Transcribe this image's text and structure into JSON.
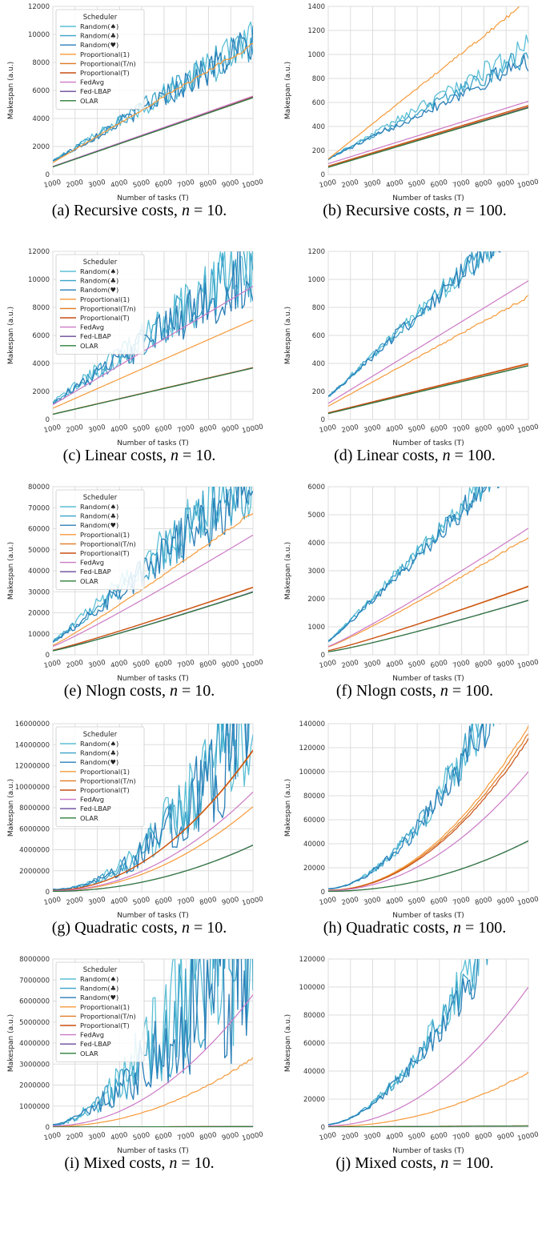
{
  "xlabel": "Number of tasks (T)",
  "ylabel": "Makespan (a.u.)",
  "legend_title": "Scheduler",
  "xticks": [
    "1000",
    "2000",
    "3000",
    "4000",
    "5000",
    "6000",
    "7000",
    "8000",
    "9000",
    "10000"
  ],
  "series_styles": [
    {
      "name": "Random(♠)",
      "color": "#5cbfd6"
    },
    {
      "name": "Random(♣)",
      "color": "#3aa3c9"
    },
    {
      "name": "Random(♥)",
      "color": "#2a7fb8"
    },
    {
      "name": "Proportional(1)",
      "color": "#f59a3a"
    },
    {
      "name": "Proportional(T/n)",
      "color": "#e07b22"
    },
    {
      "name": "Proportional(T)",
      "color": "#c84f12"
    },
    {
      "name": "FedAvg",
      "color": "#cc79c6"
    },
    {
      "name": "Fed-LBAP",
      "color": "#6a4c9c"
    },
    {
      "name": "OLAR",
      "color": "#2e7d3a"
    }
  ],
  "chart_data": [
    {
      "id": "a",
      "type": "line",
      "caption_prefix": "(a) Recursive costs, ",
      "n": "10",
      "xlim": [
        1000,
        10000
      ],
      "ylim": [
        0,
        12000
      ],
      "yticks": [
        "0",
        "2000",
        "4000",
        "6000",
        "8000",
        "10000",
        "12000"
      ],
      "legend": true,
      "series": [
        {
          "start": 950,
          "end": 9500,
          "noise": 0.09,
          "exp": 1
        },
        {
          "start": 950,
          "end": 9600,
          "noise": 0.09,
          "exp": 1
        },
        {
          "start": 950,
          "end": 9300,
          "noise": 0.09,
          "exp": 1
        },
        {
          "start": 850,
          "end": 9300,
          "noise": 0.01,
          "exp": 1
        },
        {
          "start": 560,
          "end": 5550,
          "noise": 0,
          "exp": 1
        },
        {
          "start": 560,
          "end": 5550,
          "noise": 0,
          "exp": 1
        },
        {
          "start": 580,
          "end": 5600,
          "noise": 0,
          "exp": 1
        },
        {
          "start": 550,
          "end": 5500,
          "noise": 0,
          "exp": 1
        },
        {
          "start": 540,
          "end": 5480,
          "noise": 0,
          "exp": 1
        }
      ]
    },
    {
      "id": "b",
      "type": "line",
      "caption_prefix": "(b) Recursive costs, ",
      "n": "100",
      "xlim": [
        1000,
        10000
      ],
      "ylim": [
        0,
        1400
      ],
      "yticks": [
        "0",
        "200",
        "400",
        "600",
        "800",
        "1000",
        "1200",
        "1400"
      ],
      "legend": false,
      "series": [
        {
          "start": 130,
          "end": 1070,
          "noise": 0.05,
          "exp": 1
        },
        {
          "start": 130,
          "end": 1000,
          "noise": 0.05,
          "exp": 1
        },
        {
          "start": 130,
          "end": 950,
          "noise": 0.05,
          "exp": 1
        },
        {
          "start": 130,
          "end": 1450,
          "noise": 0.006,
          "exp": 1
        },
        {
          "start": 65,
          "end": 565,
          "noise": 0,
          "exp": 1
        },
        {
          "start": 70,
          "end": 575,
          "noise": 0,
          "exp": 1
        },
        {
          "start": 90,
          "end": 610,
          "noise": 0,
          "exp": 1
        },
        {
          "start": 60,
          "end": 560,
          "noise": 0,
          "exp": 1
        },
        {
          "start": 60,
          "end": 555,
          "noise": 0,
          "exp": 1
        }
      ]
    },
    {
      "id": "c",
      "type": "line",
      "caption_prefix": "(c) Linear costs, ",
      "n": "10",
      "xlim": [
        1000,
        10000
      ],
      "ylim": [
        0,
        12000
      ],
      "yticks": [
        "0",
        "2000",
        "4000",
        "6000",
        "8000",
        "10000",
        "12000"
      ],
      "legend": true,
      "series": [
        {
          "start": 1200,
          "end": 11500,
          "noise": 0.14,
          "exp": 1
        },
        {
          "start": 1200,
          "end": 11000,
          "noise": 0.14,
          "exp": 1
        },
        {
          "start": 1200,
          "end": 10500,
          "noise": 0.14,
          "exp": 1
        },
        {
          "start": 800,
          "end": 7100,
          "noise": 0,
          "exp": 1
        },
        {
          "start": 380,
          "end": 3700,
          "noise": 0,
          "exp": 1
        },
        {
          "start": 380,
          "end": 3700,
          "noise": 0,
          "exp": 1
        },
        {
          "start": 1050,
          "end": 9500,
          "noise": 0,
          "exp": 1
        },
        {
          "start": 370,
          "end": 3680,
          "noise": 0,
          "exp": 1
        },
        {
          "start": 370,
          "end": 3670,
          "noise": 0,
          "exp": 1
        }
      ]
    },
    {
      "id": "d",
      "type": "line",
      "caption_prefix": "(d) Linear costs, ",
      "n": "100",
      "xlim": [
        1000,
        10000
      ],
      "ylim": [
        0,
        1200
      ],
      "yticks": [
        "0",
        "200",
        "400",
        "600",
        "800",
        "1000",
        "1200"
      ],
      "legend": false,
      "series": [
        {
          "start": 160,
          "end": 1500,
          "noise": 0.05,
          "exp": 1
        },
        {
          "start": 160,
          "end": 1480,
          "noise": 0.05,
          "exp": 1
        },
        {
          "start": 160,
          "end": 1470,
          "noise": 0.05,
          "exp": 1
        },
        {
          "start": 95,
          "end": 875,
          "noise": 0.006,
          "exp": 1
        },
        {
          "start": 45,
          "end": 395,
          "noise": 0,
          "exp": 1
        },
        {
          "start": 48,
          "end": 400,
          "noise": 0,
          "exp": 1
        },
        {
          "start": 115,
          "end": 990,
          "noise": 0,
          "exp": 1
        },
        {
          "start": 42,
          "end": 385,
          "noise": 0,
          "exp": 1
        },
        {
          "start": 42,
          "end": 383,
          "noise": 0,
          "exp": 1
        }
      ]
    },
    {
      "id": "e",
      "type": "line",
      "caption_prefix": "(e) Nlogn costs, ",
      "n": "10",
      "xlim": [
        1000,
        10000
      ],
      "ylim": [
        0,
        80000
      ],
      "yticks": [
        "0",
        "10000",
        "20000",
        "30000",
        "40000",
        "50000",
        "60000",
        "70000",
        "80000"
      ],
      "legend": true,
      "series": [
        {
          "start": 6500,
          "end": 90000,
          "noise": 0.13,
          "exp": 1.05
        },
        {
          "start": 6500,
          "end": 85000,
          "noise": 0.13,
          "exp": 1.05
        },
        {
          "start": 6500,
          "end": 82000,
          "noise": 0.13,
          "exp": 1.05
        },
        {
          "start": 4500,
          "end": 68000,
          "noise": 0.006,
          "exp": 1.08
        },
        {
          "start": 2200,
          "end": 32000,
          "noise": 0,
          "exp": 1.08
        },
        {
          "start": 2200,
          "end": 32200,
          "noise": 0,
          "exp": 1.08
        },
        {
          "start": 4000,
          "end": 57000,
          "noise": 0,
          "exp": 1.08
        },
        {
          "start": 2000,
          "end": 30000,
          "noise": 0,
          "exp": 1.1
        },
        {
          "start": 1900,
          "end": 29800,
          "noise": 0,
          "exp": 1.1
        }
      ]
    },
    {
      "id": "f",
      "type": "line",
      "caption_prefix": "(f) Nlogn costs, ",
      "n": "100",
      "xlim": [
        1000,
        10000
      ],
      "ylim": [
        0,
        6000
      ],
      "yticks": [
        "0",
        "1000",
        "2000",
        "3000",
        "4000",
        "5000",
        "6000"
      ],
      "legend": false,
      "series": [
        {
          "start": 500,
          "end": 8000,
          "noise": 0.05,
          "exp": 1.05
        },
        {
          "start": 480,
          "end": 7800,
          "noise": 0.05,
          "exp": 1.05
        },
        {
          "start": 470,
          "end": 7600,
          "noise": 0.05,
          "exp": 1.05
        },
        {
          "start": 280,
          "end": 4200,
          "noise": 0.005,
          "exp": 1.1
        },
        {
          "start": 150,
          "end": 2430,
          "noise": 0,
          "exp": 1.1
        },
        {
          "start": 150,
          "end": 2450,
          "noise": 0,
          "exp": 1.1
        },
        {
          "start": 300,
          "end": 4520,
          "noise": 0,
          "exp": 1.1
        },
        {
          "start": 110,
          "end": 1950,
          "noise": 0,
          "exp": 1.15
        },
        {
          "start": 110,
          "end": 1940,
          "noise": 0,
          "exp": 1.15
        }
      ]
    },
    {
      "id": "g",
      "type": "line",
      "caption_prefix": "(g) Quadratic costs, ",
      "n": "10",
      "xlim": [
        1000,
        10000
      ],
      "ylim": [
        0,
        16000000
      ],
      "yticks": [
        "0",
        "2000000",
        "4000000",
        "6000000",
        "8000000",
        "10000000",
        "12000000",
        "14000000",
        "16000000"
      ],
      "legend": true,
      "series": [
        {
          "start": 200000,
          "end": 20000000,
          "noise": 0.25,
          "exp": 2
        },
        {
          "start": 200000,
          "end": 19000000,
          "noise": 0.25,
          "exp": 2
        },
        {
          "start": 200000,
          "end": 18000000,
          "noise": 0.25,
          "exp": 2
        },
        {
          "start": 80000,
          "end": 8100000,
          "noise": 0,
          "exp": 2
        },
        {
          "start": 135000,
          "end": 13400000,
          "noise": 0,
          "exp": 2
        },
        {
          "start": 135000,
          "end": 13500000,
          "noise": 0,
          "exp": 2
        },
        {
          "start": 95000,
          "end": 9500000,
          "noise": 0,
          "exp": 2
        },
        {
          "start": 45000,
          "end": 4450000,
          "noise": 0,
          "exp": 2
        },
        {
          "start": 45000,
          "end": 4430000,
          "noise": 0,
          "exp": 2
        }
      ]
    },
    {
      "id": "h",
      "type": "line",
      "caption_prefix": "(h) Quadratic costs, ",
      "n": "100",
      "xlim": [
        1000,
        10000
      ],
      "ylim": [
        0,
        140000
      ],
      "yticks": [
        "0",
        "20000",
        "40000",
        "60000",
        "80000",
        "100000",
        "120000",
        "140000"
      ],
      "legend": false,
      "series": [
        {
          "start": 2500,
          "end": 230000,
          "noise": 0.1,
          "exp": 1.8
        },
        {
          "start": 2500,
          "end": 225000,
          "noise": 0.1,
          "exp": 1.8
        },
        {
          "start": 2500,
          "end": 220000,
          "noise": 0.1,
          "exp": 1.8
        },
        {
          "start": 1300,
          "end": 138000,
          "noise": 0.004,
          "exp": 2
        },
        {
          "start": 1250,
          "end": 132000,
          "noise": 0.004,
          "exp": 2
        },
        {
          "start": 1200,
          "end": 127000,
          "noise": 0.004,
          "exp": 2
        },
        {
          "start": 1000,
          "end": 100000,
          "noise": 0,
          "exp": 2
        },
        {
          "start": 420,
          "end": 42500,
          "noise": 0,
          "exp": 2
        },
        {
          "start": 420,
          "end": 42300,
          "noise": 0,
          "exp": 2
        }
      ]
    },
    {
      "id": "i",
      "type": "line",
      "caption_prefix": "(i) Mixed costs, ",
      "n": "10",
      "xlim": [
        1000,
        10000
      ],
      "ylim": [
        0,
        8000000
      ],
      "yticks": [
        "0",
        "1000000",
        "2000000",
        "3000000",
        "4000000",
        "5000000",
        "6000000",
        "7000000",
        "8000000"
      ],
      "legend": true,
      "series": [
        {
          "start": 100000,
          "end": 12000000,
          "noise": 0.35,
          "exp": 1.6
        },
        {
          "start": 100000,
          "end": 11000000,
          "noise": 0.35,
          "exp": 1.6
        },
        {
          "start": 100000,
          "end": 10500000,
          "noise": 0.35,
          "exp": 1.6
        },
        {
          "start": 35000,
          "end": 3300000,
          "noise": 0.01,
          "exp": 2
        },
        {
          "start": 1000,
          "end": 30000,
          "noise": 0,
          "exp": 1
        },
        {
          "start": 1000,
          "end": 30000,
          "noise": 0,
          "exp": 1
        },
        {
          "start": 60000,
          "end": 6300000,
          "noise": 0,
          "exp": 2
        },
        {
          "start": 1000,
          "end": 28000,
          "noise": 0,
          "exp": 1
        },
        {
          "start": 900,
          "end": 26000,
          "noise": 0,
          "exp": 1
        }
      ]
    },
    {
      "id": "j",
      "type": "line",
      "caption_prefix": "(j) Mixed costs, ",
      "n": "100",
      "xlim": [
        1000,
        10000
      ],
      "ylim": [
        0,
        120000
      ],
      "yticks": [
        "0",
        "20000",
        "40000",
        "60000",
        "80000",
        "100000",
        "120000"
      ],
      "legend": false,
      "series": [
        {
          "start": 2000,
          "end": 200000,
          "noise": 0.1,
          "exp": 1.7
        },
        {
          "start": 2000,
          "end": 195000,
          "noise": 0.1,
          "exp": 1.7
        },
        {
          "start": 2000,
          "end": 190000,
          "noise": 0.1,
          "exp": 1.7
        },
        {
          "start": 400,
          "end": 39000,
          "noise": 0.01,
          "exp": 2
        },
        {
          "start": 100,
          "end": 900,
          "noise": 0,
          "exp": 1
        },
        {
          "start": 100,
          "end": 900,
          "noise": 0,
          "exp": 1
        },
        {
          "start": 1000,
          "end": 100000,
          "noise": 0,
          "exp": 2
        },
        {
          "start": 90,
          "end": 850,
          "noise": 0,
          "exp": 1
        },
        {
          "start": 80,
          "end": 800,
          "noise": 0,
          "exp": 1
        }
      ]
    }
  ]
}
